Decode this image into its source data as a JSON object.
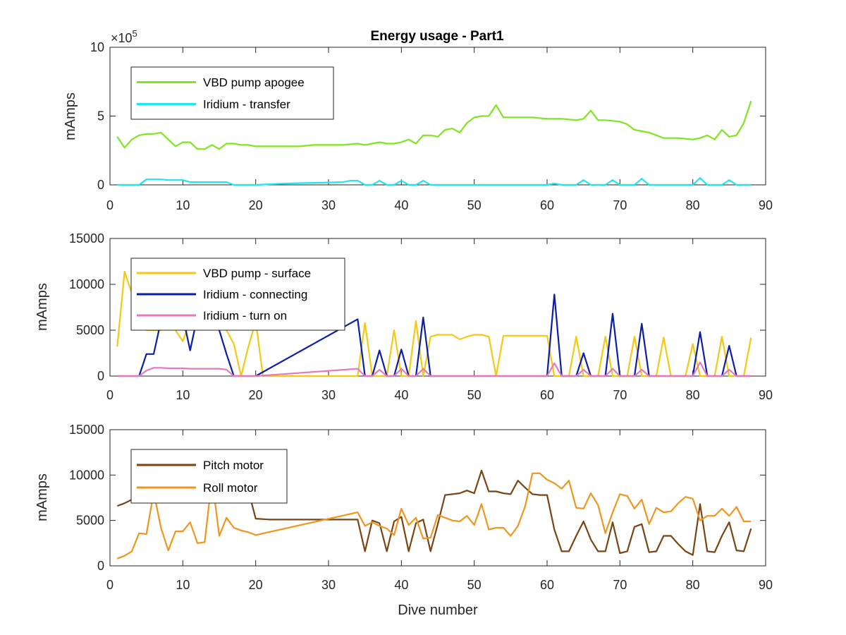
{
  "chart_data": [
    {
      "type": "line",
      "title": "Energy usage - Part1",
      "xlabel": "",
      "ylabel": "mAmps",
      "xlim": [
        0,
        90
      ],
      "ylim": [
        0,
        10
      ],
      "y_multiplier_label": "×10",
      "y_multiplier_exponent": "5",
      "xticks": [
        0,
        10,
        20,
        30,
        40,
        50,
        60,
        70,
        80,
        90
      ],
      "yticks": [
        0,
        5,
        10
      ],
      "legend_position": "top-left",
      "series": [
        {
          "name": "VBD pump apogee",
          "color": "#7fe61e",
          "x": [
            1,
            2,
            3,
            4,
            5,
            6,
            7,
            8,
            9,
            10,
            11,
            12,
            13,
            14,
            15,
            16,
            17,
            18,
            19,
            20,
            22,
            24,
            26,
            28,
            30,
            32,
            34,
            35,
            36,
            37,
            38,
            39,
            40,
            41,
            42,
            43,
            44,
            45,
            46,
            47,
            48,
            49,
            50,
            51,
            52,
            53,
            54,
            55,
            56,
            58,
            60,
            62,
            64,
            65,
            66,
            67,
            68,
            70,
            71,
            72,
            74,
            76,
            78,
            80,
            81,
            82,
            83,
            84,
            85,
            86,
            87,
            88
          ],
          "y": [
            3.5,
            2.7,
            3.3,
            3.6,
            3.7,
            3.7,
            3.8,
            3.3,
            2.8,
            3.1,
            3.1,
            2.6,
            2.6,
            2.9,
            2.6,
            3.0,
            3.0,
            2.9,
            2.9,
            2.8,
            2.8,
            2.8,
            2.8,
            2.9,
            2.9,
            2.9,
            3.0,
            2.9,
            3.0,
            3.1,
            3.0,
            3.0,
            3.1,
            3.3,
            3.0,
            3.6,
            3.6,
            3.5,
            4.0,
            4.1,
            3.8,
            4.5,
            4.9,
            5.0,
            5.0,
            5.8,
            4.9,
            4.9,
            4.9,
            4.9,
            4.8,
            4.8,
            4.7,
            4.8,
            5.4,
            4.7,
            4.7,
            4.6,
            4.4,
            4.0,
            3.8,
            3.4,
            3.4,
            3.3,
            3.4,
            3.6,
            3.3,
            4.0,
            3.5,
            3.6,
            4.5,
            6.1
          ]
        },
        {
          "name": "Iridium - transfer",
          "color": "#1ee6f0",
          "x": [
            1,
            2,
            3,
            4,
            5,
            6,
            7,
            8,
            9,
            10,
            11,
            12,
            13,
            14,
            15,
            16,
            17,
            18,
            19,
            20,
            24,
            28,
            32,
            33,
            34,
            35,
            36,
            37,
            38,
            39,
            40,
            41,
            42,
            43,
            44,
            50,
            60,
            61,
            62,
            63,
            64,
            65,
            66,
            67,
            68,
            69,
            70,
            71,
            72,
            73,
            74,
            78,
            80,
            81,
            82,
            83,
            84,
            85,
            86,
            87,
            88
          ],
          "y": [
            0,
            0,
            0,
            0,
            0.4,
            0.4,
            0.4,
            0.35,
            0.35,
            0.35,
            0.2,
            0.2,
            0.2,
            0.2,
            0.2,
            0.2,
            0,
            0,
            0,
            0,
            0.1,
            0.15,
            0.2,
            0.3,
            0.3,
            0,
            0,
            0.3,
            0,
            0,
            0.3,
            0,
            0,
            0.3,
            0,
            0,
            0,
            0.1,
            0,
            0,
            0,
            0.35,
            0,
            0,
            0,
            0.35,
            0,
            0,
            0,
            0.45,
            0,
            0,
            0,
            0.5,
            0,
            0,
            0,
            0.35,
            0,
            0,
            0
          ]
        }
      ]
    },
    {
      "type": "line",
      "title": "",
      "xlabel": "",
      "ylabel": "mAmps",
      "xlim": [
        0,
        90
      ],
      "ylim": [
        0,
        15000
      ],
      "xticks": [
        0,
        10,
        20,
        30,
        40,
        50,
        60,
        70,
        80,
        90
      ],
      "yticks": [
        0,
        5000,
        10000,
        15000
      ],
      "legend_position": "top-left",
      "series": [
        {
          "name": "VBD pump - surface",
          "color": "#f5c814",
          "x": [
            1,
            2,
            3,
            4,
            5,
            6,
            7,
            8,
            9,
            10,
            11,
            12,
            13,
            14,
            15,
            16,
            17,
            18,
            19,
            20,
            21,
            22,
            30,
            34,
            35,
            36,
            37,
            38,
            39,
            40,
            41,
            42,
            43,
            44,
            45,
            46,
            47,
            48,
            49,
            50,
            51,
            52,
            53,
            54,
            55,
            60,
            61,
            62,
            63,
            64,
            65,
            66,
            67,
            68,
            69,
            70,
            71,
            72,
            73,
            74,
            75,
            76,
            77,
            78,
            79,
            80,
            81,
            82,
            83,
            84,
            85,
            86,
            87,
            88
          ],
          "y": [
            3200,
            11400,
            9000,
            6000,
            5000,
            5000,
            5000,
            5500,
            5000,
            3800,
            6000,
            6000,
            6000,
            6000,
            6000,
            5000,
            3500,
            0,
            3200,
            6000,
            0,
            0,
            0,
            0,
            5800,
            0,
            0,
            0,
            5000,
            0,
            0,
            6000,
            0,
            4300,
            4500,
            4500,
            4500,
            4000,
            4300,
            4500,
            4500,
            4300,
            0,
            4400,
            4400,
            4400,
            0,
            0,
            0,
            4300,
            0,
            0,
            0,
            4300,
            0,
            0,
            0,
            4300,
            0,
            0,
            0,
            4200,
            0,
            0,
            0,
            3500,
            0,
            0,
            0,
            4300,
            0,
            0,
            0,
            4200
          ]
        },
        {
          "name": "Iridium - connecting",
          "color": "#0a1eaa",
          "x": [
            1,
            2,
            3,
            4,
            5,
            6,
            7,
            8,
            9,
            10,
            11,
            12,
            13,
            14,
            15,
            16,
            17,
            18,
            19,
            20,
            34,
            35,
            36,
            37,
            38,
            39,
            40,
            41,
            42,
            43,
            44,
            60,
            61,
            62,
            63,
            64,
            65,
            66,
            67,
            68,
            69,
            70,
            71,
            72,
            73,
            74,
            78,
            80,
            81,
            82,
            83,
            84,
            85,
            86,
            87,
            88
          ],
          "y": [
            0,
            0,
            0,
            0,
            2400,
            2400,
            6000,
            6500,
            6500,
            6500,
            2800,
            6500,
            6500,
            6500,
            5000,
            2400,
            0,
            0,
            0,
            0,
            6200,
            0,
            0,
            2800,
            0,
            0,
            2900,
            0,
            0,
            6400,
            0,
            0,
            8900,
            0,
            0,
            0,
            2500,
            0,
            0,
            0,
            6800,
            0,
            0,
            0,
            5700,
            0,
            0,
            0,
            4800,
            0,
            0,
            0,
            3300,
            0,
            0,
            0
          ]
        },
        {
          "name": "Iridium - turn on",
          "color": "#e678be",
          "x": [
            1,
            2,
            3,
            4,
            5,
            6,
            7,
            8,
            9,
            10,
            11,
            12,
            13,
            14,
            15,
            16,
            17,
            18,
            19,
            20,
            34,
            35,
            36,
            37,
            38,
            39,
            40,
            41,
            42,
            43,
            44,
            60,
            61,
            62,
            63,
            64,
            65,
            66,
            67,
            68,
            69,
            70,
            71,
            72,
            73,
            74,
            80,
            81,
            82,
            83,
            84,
            85,
            86,
            87,
            88
          ],
          "y": [
            0,
            0,
            0,
            0,
            600,
            900,
            900,
            850,
            850,
            850,
            800,
            800,
            800,
            800,
            800,
            700,
            0,
            0,
            0,
            0,
            800,
            0,
            0,
            700,
            0,
            0,
            800,
            0,
            0,
            800,
            0,
            0,
            1400,
            0,
            0,
            0,
            700,
            0,
            0,
            0,
            800,
            0,
            0,
            0,
            700,
            0,
            0,
            1500,
            0,
            0,
            0,
            700,
            0,
            0,
            0
          ]
        }
      ]
    },
    {
      "type": "line",
      "title": "",
      "xlabel": "Dive number",
      "ylabel": "mAmps",
      "xlim": [
        0,
        90
      ],
      "ylim": [
        0,
        15000
      ],
      "xticks": [
        0,
        10,
        20,
        30,
        40,
        50,
        60,
        70,
        80,
        90
      ],
      "yticks": [
        0,
        5000,
        10000,
        15000
      ],
      "legend_position": "top-left",
      "series": [
        {
          "name": "Pitch motor",
          "color": "#7a4414",
          "x": [
            1,
            2,
            3,
            4,
            5,
            6,
            7,
            8,
            9,
            10,
            11,
            12,
            13,
            14,
            15,
            16,
            17,
            18,
            19,
            20,
            22,
            30,
            34,
            35,
            36,
            37,
            38,
            39,
            40,
            41,
            42,
            43,
            44,
            45,
            46,
            47,
            48,
            49,
            50,
            51,
            52,
            53,
            54,
            55,
            56,
            57,
            58,
            59,
            60,
            61,
            62,
            63,
            64,
            65,
            66,
            67,
            68,
            69,
            70,
            71,
            72,
            73,
            74,
            75,
            76,
            77,
            78,
            79,
            80,
            81,
            82,
            83,
            84,
            85,
            86,
            87,
            88
          ],
          "y": [
            6600,
            6900,
            7300,
            7400,
            7500,
            7500,
            7500,
            7500,
            7500,
            7500,
            7500,
            7500,
            7500,
            7500,
            7500,
            7500,
            7500,
            7500,
            8300,
            5200,
            5100,
            5100,
            5100,
            1600,
            5000,
            4700,
            1600,
            4900,
            5400,
            1600,
            4700,
            5100,
            1600,
            4600,
            7800,
            7900,
            8000,
            8300,
            8000,
            10500,
            8200,
            8200,
            8000,
            7900,
            9400,
            8600,
            7900,
            7800,
            7800,
            4000,
            1600,
            1600,
            3300,
            4900,
            2900,
            1600,
            1600,
            4800,
            1400,
            1600,
            4300,
            4600,
            1500,
            1600,
            3300,
            3300,
            2400,
            1600,
            1200,
            6800,
            1600,
            1500,
            3300,
            4800,
            1700,
            1600,
            4100
          ]
        },
        {
          "name": "Roll motor",
          "color": "#f0961e",
          "x": [
            1,
            2,
            3,
            4,
            5,
            6,
            7,
            8,
            9,
            10,
            11,
            12,
            13,
            14,
            15,
            16,
            17,
            18,
            19,
            20,
            34,
            35,
            36,
            37,
            38,
            39,
            40,
            41,
            42,
            43,
            44,
            45,
            46,
            47,
            48,
            49,
            50,
            51,
            52,
            53,
            54,
            55,
            56,
            57,
            58,
            59,
            60,
            61,
            62,
            63,
            64,
            65,
            66,
            67,
            68,
            69,
            70,
            71,
            72,
            73,
            74,
            75,
            76,
            77,
            78,
            79,
            80,
            81,
            82,
            83,
            84,
            85,
            86,
            87,
            88
          ],
          "y": [
            800,
            1100,
            1600,
            3600,
            3500,
            8100,
            4200,
            1700,
            3800,
            3800,
            4800,
            2500,
            2600,
            9700,
            3300,
            5300,
            4200,
            3900,
            3700,
            3400,
            5900,
            4400,
            4800,
            4400,
            4100,
            3400,
            6300,
            4500,
            5300,
            3000,
            3100,
            5600,
            5300,
            5000,
            4900,
            5500,
            4500,
            6800,
            4000,
            4200,
            4200,
            3300,
            4400,
            6600,
            10200,
            10200,
            9500,
            9100,
            8500,
            9400,
            6400,
            6300,
            8000,
            6700,
            3600,
            5900,
            7900,
            7700,
            6300,
            7300,
            4600,
            6400,
            5900,
            6000,
            6900,
            7600,
            7400,
            5000,
            5500,
            5500,
            6300,
            5500,
            6500,
            4900,
            4900
          ]
        }
      ]
    }
  ]
}
